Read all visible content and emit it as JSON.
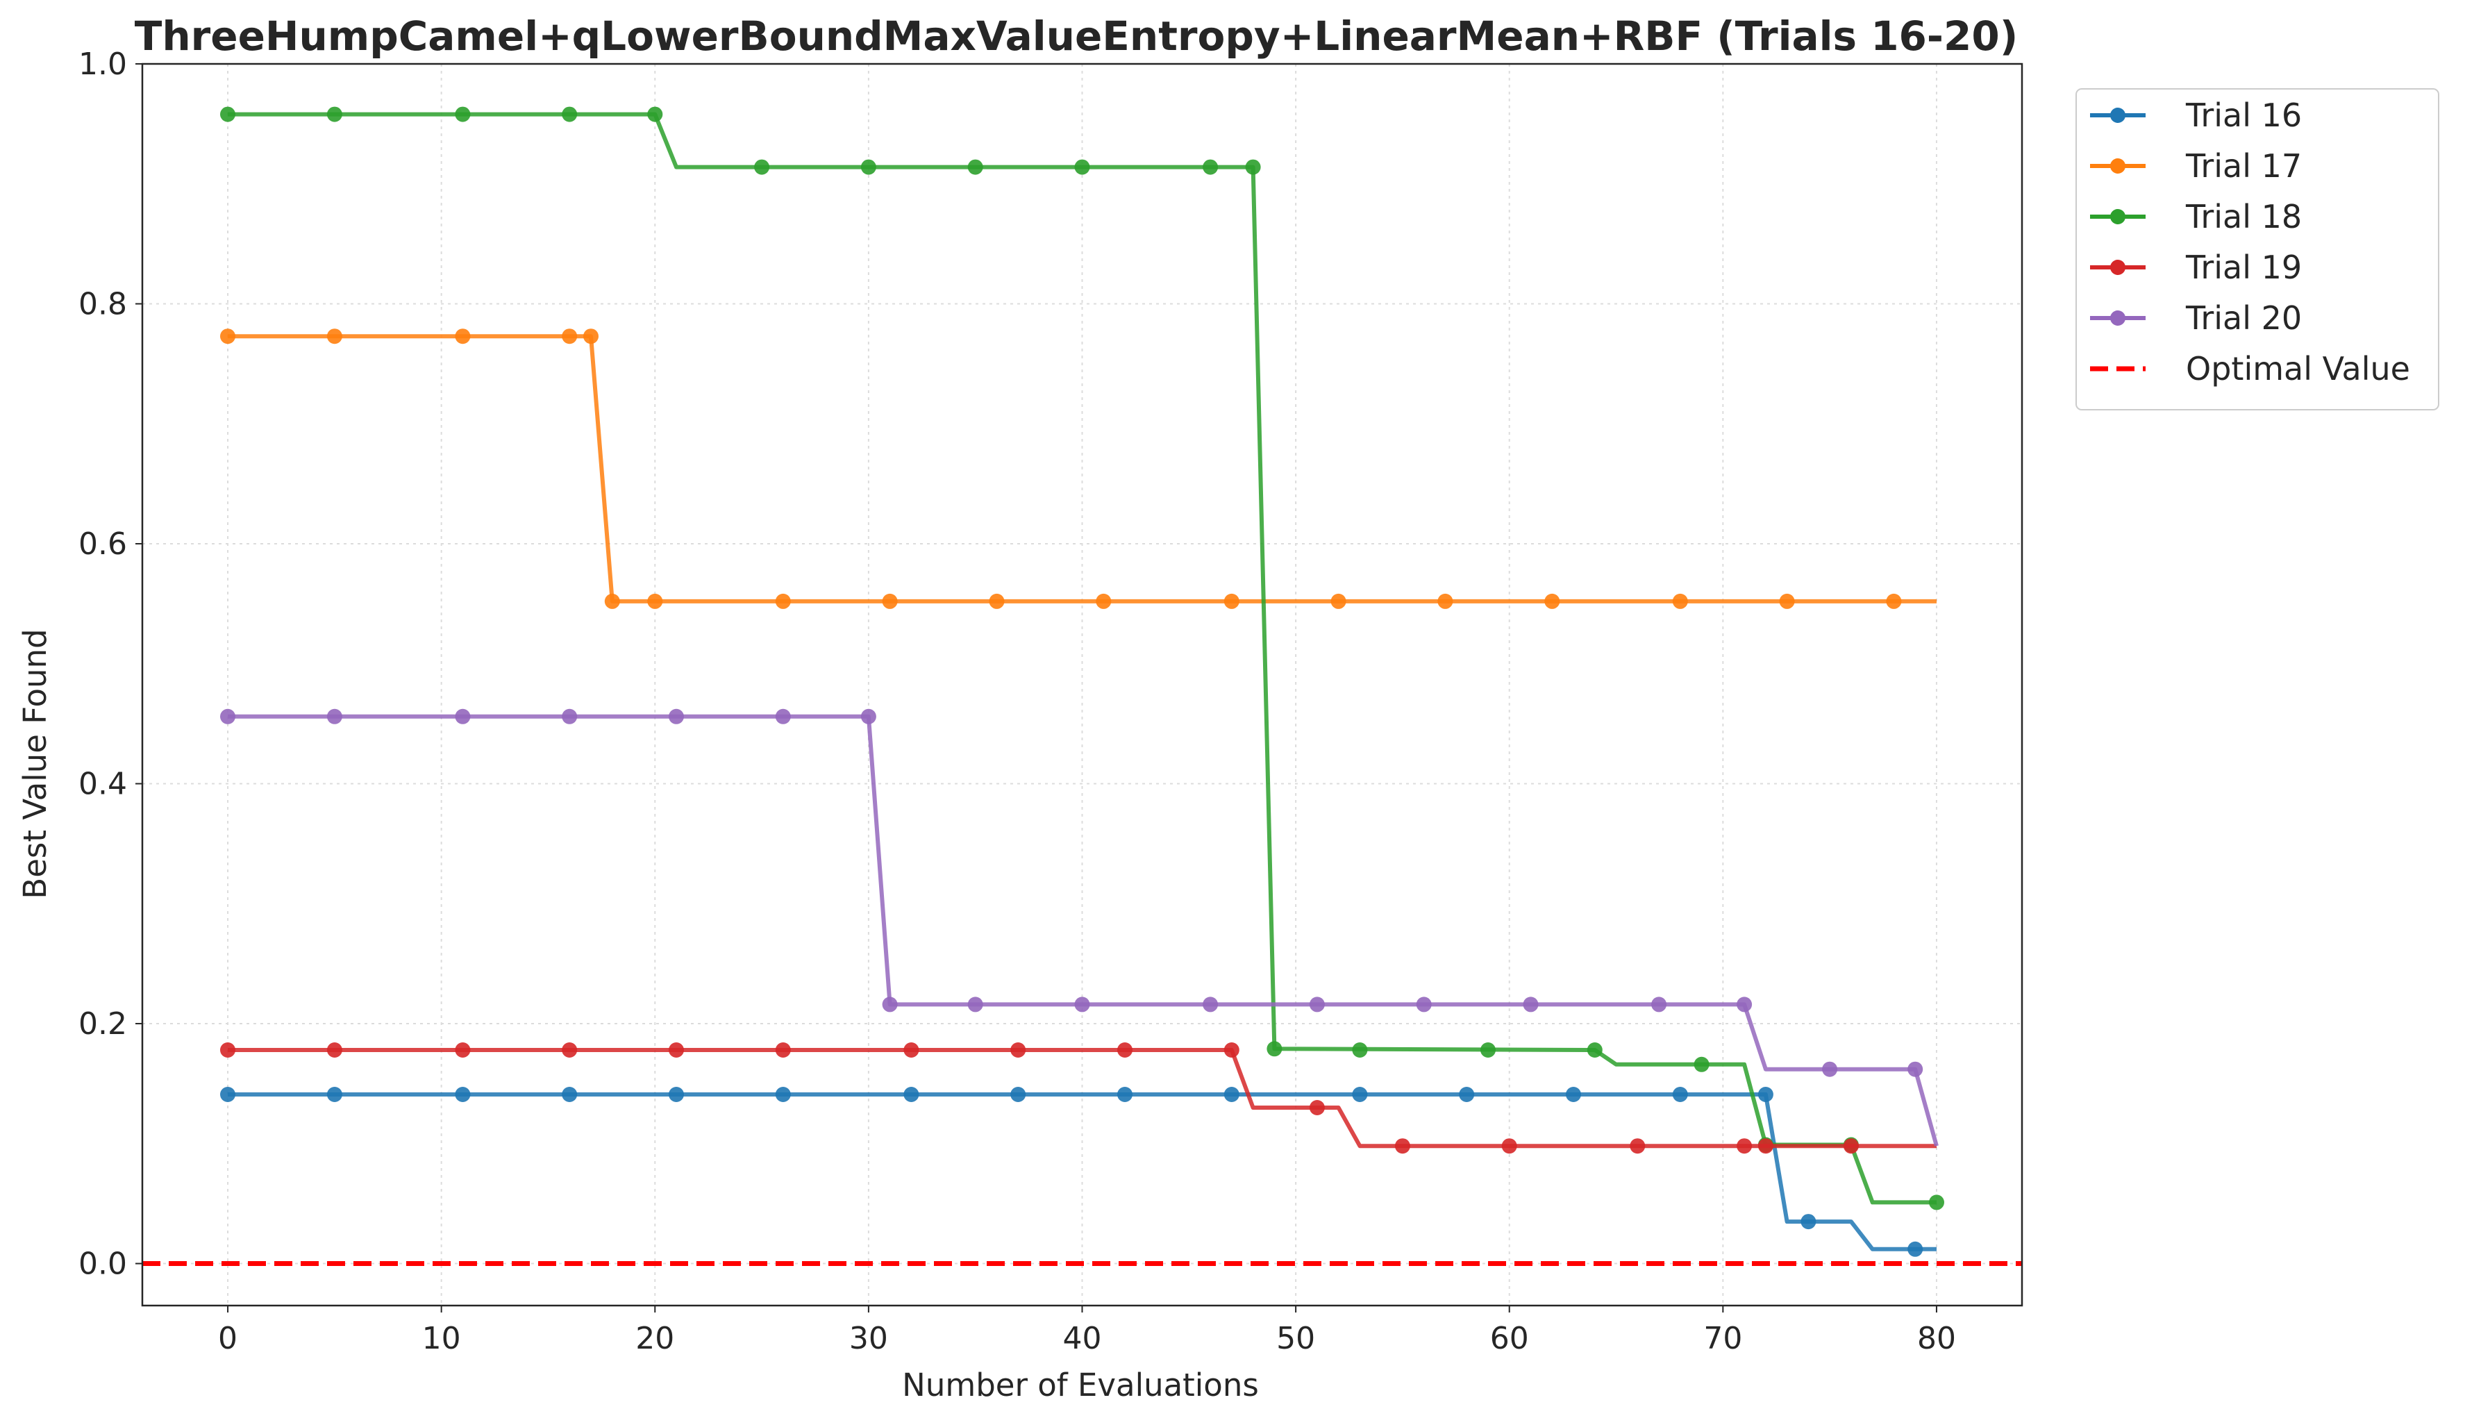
{
  "chart_data": {
    "type": "line",
    "title": "ThreeHumpCamel+qLowerBoundMaxValueEntropy+LinearMean+RBF (Trials 16-20)",
    "xlabel": "Number of Evaluations",
    "ylabel": "Best Value Found",
    "xlim": [
      -4,
      84
    ],
    "ylim": [
      -0.035,
      1.0
    ],
    "xticks": [
      0,
      10,
      20,
      30,
      40,
      50,
      60,
      70,
      80
    ],
    "xtick_labels": [
      "0",
      "10",
      "20",
      "30",
      "40",
      "50",
      "60",
      "70",
      "80"
    ],
    "yticks": [
      0.0,
      0.2,
      0.4,
      0.6,
      0.8,
      1.0
    ],
    "ytick_labels": [
      "0.0",
      "0.2",
      "0.4",
      "0.6",
      "0.8",
      "1.0"
    ],
    "grid": true,
    "legend_position": "outside-top-right",
    "series": [
      {
        "name": "Trial 16",
        "color": "#1f77b4",
        "steps": [
          [
            0,
            0.141
          ],
          [
            72,
            0.141
          ],
          [
            73,
            0.035
          ],
          [
            76,
            0.035
          ],
          [
            77,
            0.012
          ],
          [
            80,
            0.012
          ]
        ],
        "markers": [
          [
            0,
            0.141
          ],
          [
            5,
            0.141
          ],
          [
            11,
            0.141
          ],
          [
            16,
            0.141
          ],
          [
            21,
            0.141
          ],
          [
            26,
            0.141
          ],
          [
            32,
            0.141
          ],
          [
            37,
            0.141
          ],
          [
            42,
            0.141
          ],
          [
            47,
            0.141
          ],
          [
            53,
            0.141
          ],
          [
            58,
            0.141
          ],
          [
            63,
            0.141
          ],
          [
            68,
            0.141
          ],
          [
            72,
            0.141
          ],
          [
            74,
            0.035
          ],
          [
            79,
            0.012
          ]
        ]
      },
      {
        "name": "Trial 17",
        "color": "#ff7f0e",
        "steps": [
          [
            0,
            0.773
          ],
          [
            17,
            0.773
          ],
          [
            18,
            0.552
          ],
          [
            80,
            0.552
          ]
        ],
        "markers": [
          [
            0,
            0.773
          ],
          [
            5,
            0.773
          ],
          [
            11,
            0.773
          ],
          [
            16,
            0.773
          ],
          [
            17,
            0.773
          ],
          [
            18,
            0.552
          ],
          [
            20,
            0.552
          ],
          [
            26,
            0.552
          ],
          [
            31,
            0.552
          ],
          [
            36,
            0.552
          ],
          [
            41,
            0.552
          ],
          [
            47,
            0.552
          ],
          [
            52,
            0.552
          ],
          [
            57,
            0.552
          ],
          [
            62,
            0.552
          ],
          [
            68,
            0.552
          ],
          [
            73,
            0.552
          ],
          [
            78,
            0.552
          ]
        ]
      },
      {
        "name": "Trial 18",
        "color": "#2ca02c",
        "steps": [
          [
            0,
            0.958
          ],
          [
            20,
            0.958
          ],
          [
            21,
            0.914
          ],
          [
            48,
            0.914
          ],
          [
            49,
            0.179
          ],
          [
            64,
            0.178
          ],
          [
            65,
            0.166
          ],
          [
            71,
            0.166
          ],
          [
            72,
            0.099
          ],
          [
            76,
            0.099
          ],
          [
            77,
            0.051
          ],
          [
            80,
            0.051
          ]
        ],
        "markers": [
          [
            0,
            0.958
          ],
          [
            5,
            0.958
          ],
          [
            11,
            0.958
          ],
          [
            16,
            0.958
          ],
          [
            20,
            0.958
          ],
          [
            25,
            0.914
          ],
          [
            30,
            0.914
          ],
          [
            35,
            0.914
          ],
          [
            40,
            0.914
          ],
          [
            46,
            0.914
          ],
          [
            48,
            0.914
          ],
          [
            49,
            0.179
          ],
          [
            53,
            0.178
          ],
          [
            59,
            0.178
          ],
          [
            64,
            0.178
          ],
          [
            69,
            0.166
          ],
          [
            72,
            0.099
          ],
          [
            76,
            0.099
          ],
          [
            80,
            0.051
          ]
        ]
      },
      {
        "name": "Trial 19",
        "color": "#d62728",
        "steps": [
          [
            0,
            0.178
          ],
          [
            47,
            0.178
          ],
          [
            48,
            0.13
          ],
          [
            52,
            0.13
          ],
          [
            53,
            0.098
          ],
          [
            80,
            0.098
          ]
        ],
        "markers": [
          [
            0,
            0.178
          ],
          [
            5,
            0.178
          ],
          [
            11,
            0.178
          ],
          [
            16,
            0.178
          ],
          [
            21,
            0.178
          ],
          [
            26,
            0.178
          ],
          [
            32,
            0.178
          ],
          [
            37,
            0.178
          ],
          [
            42,
            0.178
          ],
          [
            47,
            0.178
          ],
          [
            51,
            0.13
          ],
          [
            55,
            0.098
          ],
          [
            60,
            0.098
          ],
          [
            66,
            0.098
          ],
          [
            71,
            0.098
          ],
          [
            72,
            0.098
          ],
          [
            76,
            0.098
          ]
        ]
      },
      {
        "name": "Trial 20",
        "color": "#9467bd",
        "steps": [
          [
            0,
            0.456
          ],
          [
            30,
            0.456
          ],
          [
            31,
            0.216
          ],
          [
            71,
            0.216
          ],
          [
            72,
            0.162
          ],
          [
            79,
            0.162
          ],
          [
            80,
            0.098
          ]
        ],
        "markers": [
          [
            0,
            0.456
          ],
          [
            5,
            0.456
          ],
          [
            11,
            0.456
          ],
          [
            16,
            0.456
          ],
          [
            21,
            0.456
          ],
          [
            26,
            0.456
          ],
          [
            30,
            0.456
          ],
          [
            31,
            0.216
          ],
          [
            35,
            0.216
          ],
          [
            40,
            0.216
          ],
          [
            46,
            0.216
          ],
          [
            51,
            0.216
          ],
          [
            56,
            0.216
          ],
          [
            61,
            0.216
          ],
          [
            67,
            0.216
          ],
          [
            71,
            0.216
          ],
          [
            75,
            0.162
          ],
          [
            79,
            0.162
          ]
        ]
      },
      {
        "name": "Optimal Value",
        "color": "#ff0000",
        "style": "dashed",
        "hline": 0.0
      }
    ]
  }
}
